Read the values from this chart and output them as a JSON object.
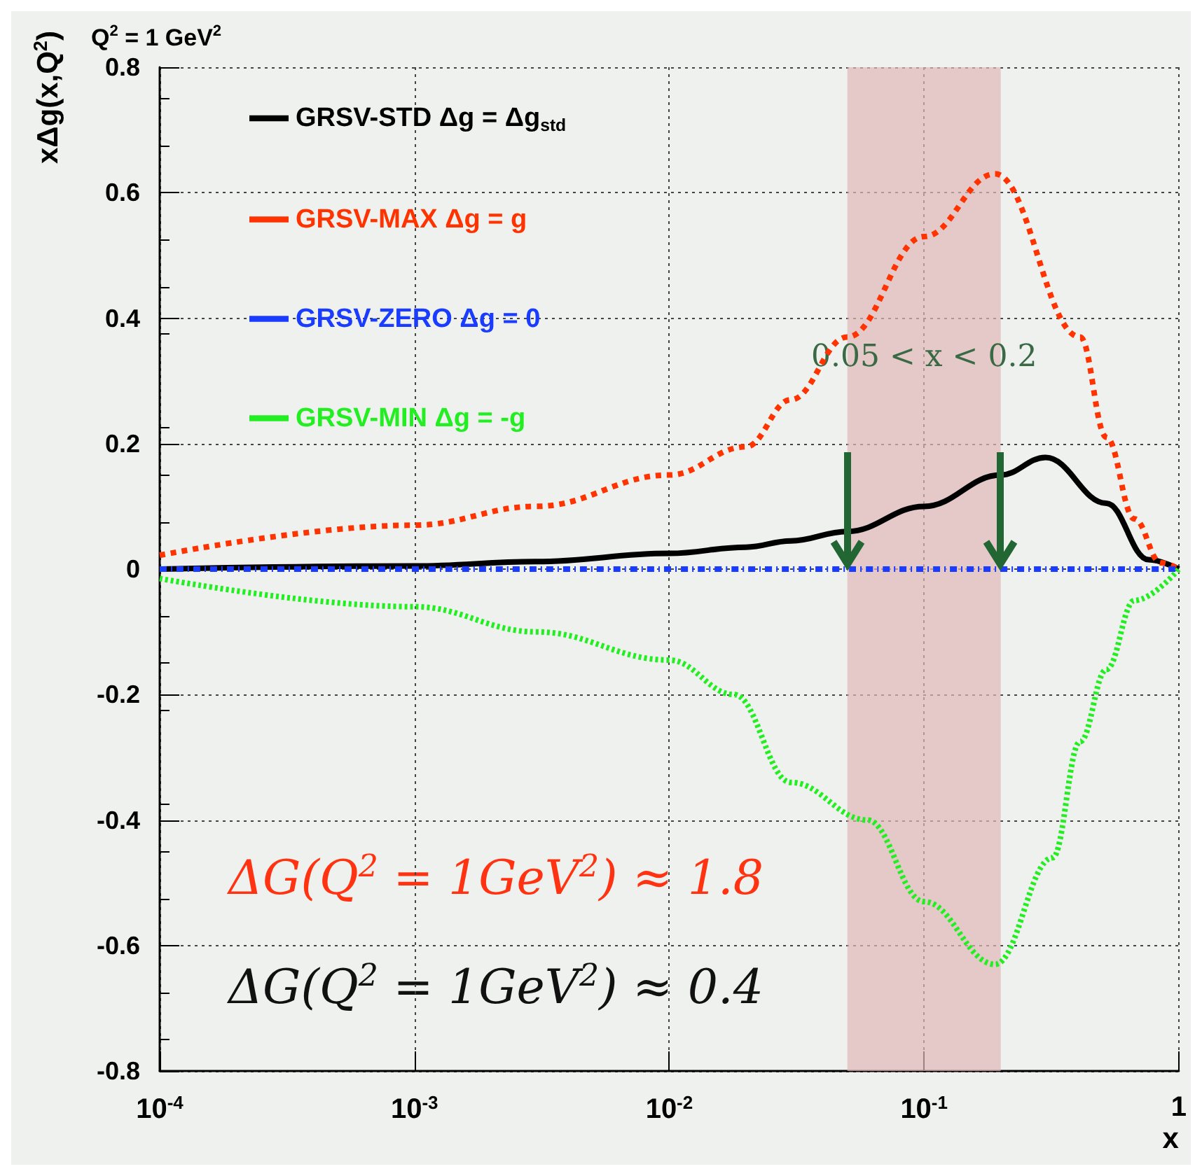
{
  "chart_data": {
    "type": "line",
    "title": "Q$^{2}$ = 1 GeV$^{2}$",
    "xlabel": "x",
    "ylabel": "xΔg(x,Q$^{2}$)",
    "log": "x",
    "grid": true,
    "legend": "top left",
    "xlim": [
      0.0001,
      1
    ],
    "ylim": [
      -0.8,
      0.8
    ],
    "xticks": [
      {
        "value": 0.0001,
        "label": "10$^{-4}$"
      },
      {
        "value": 0.001,
        "label": "10$^{-3}$"
      },
      {
        "value": 0.01,
        "label": "10$^{-2}$"
      },
      {
        "value": 0.1,
        "label": "10$^{-1}$"
      },
      1
    ],
    "yticks": [
      -0.8,
      -0.6,
      -0.4,
      -0.2,
      0,
      0.2,
      0.4,
      0.6,
      0.8
    ],
    "series": [
      {
        "name": "GRSV-STD Δg = Δg$_{std}$",
        "color": "#000000",
        "line_style": "solid",
        "x": [
          0.0001,
          0.001,
          0.003,
          0.01,
          0.02,
          0.03,
          0.05,
          0.1,
          0.2,
          0.3,
          0.52,
          0.76,
          1
        ],
        "values": [
          0.0,
          0.005,
          0.012,
          0.025,
          0.035,
          0.045,
          0.06,
          0.1,
          0.15,
          0.178,
          0.105,
          0.015,
          0
        ]
      },
      {
        "name": "GRSV-MAX Δg = g",
        "color": "#ff3300",
        "line_style": "dashed",
        "x": [
          0.0001,
          0.001,
          0.003,
          0.01,
          0.02,
          0.03,
          0.05,
          0.1,
          0.19,
          0.41,
          0.52,
          0.67,
          0.85,
          1
        ],
        "values": [
          0.022,
          0.07,
          0.1,
          0.15,
          0.195,
          0.27,
          0.37,
          0.53,
          0.63,
          0.37,
          0.21,
          0.08,
          0.01,
          0
        ]
      },
      {
        "name": "GRSV-ZERO Δg = 0",
        "color": "#1a3cff",
        "line_style": "dashdot",
        "x": [
          0.0001,
          1
        ],
        "values": [
          0,
          0
        ]
      },
      {
        "name": "GRSV-MIN Δg = -g",
        "color": "#22ee22",
        "line_style": "dotted",
        "x": [
          0.0001,
          0.001,
          0.003,
          0.01,
          0.018,
          0.03,
          0.06,
          0.1,
          0.19,
          0.32,
          0.41,
          0.52,
          0.67,
          1
        ],
        "values": [
          -0.015,
          -0.06,
          -0.1,
          -0.145,
          -0.2,
          -0.34,
          -0.4,
          -0.53,
          -0.63,
          -0.46,
          -0.275,
          -0.16,
          -0.05,
          0
        ]
      }
    ],
    "bands": [
      {
        "axis": "x",
        "from": 0.05,
        "to": 0.2,
        "color": "#e0b8b8",
        "label": "0.05 < x < 0.2"
      }
    ],
    "annotations": [
      "ΔG(Q$^{2}$ = 1GeV$^{2}$) ≈ 1.8",
      "ΔG(Q$^{2}$ = 1GeV$^{2}$) ≈ 0.4"
    ]
  }
}
